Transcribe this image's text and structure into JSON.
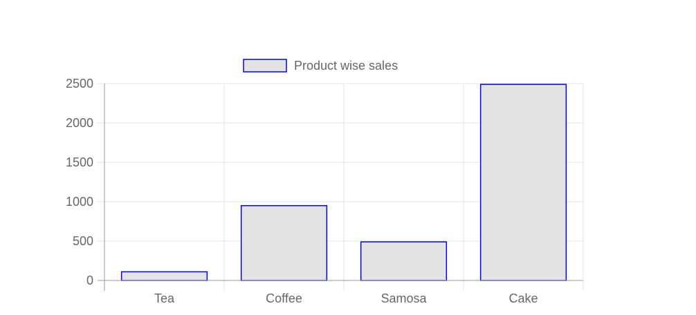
{
  "chart_data": {
    "type": "bar",
    "categories": [
      "Tea",
      "Coffee",
      "Samosa",
      "Cake"
    ],
    "series": [
      {
        "name": "Product wise sales",
        "values": [
          110,
          950,
          490,
          2490
        ]
      }
    ],
    "ylim": [
      0,
      2500
    ],
    "yticks": [
      0,
      500,
      1000,
      1500,
      2000,
      2500
    ],
    "grid": true,
    "legend_position": "top",
    "colors": {
      "bar_fill": "#e4e4e4",
      "bar_border": "#0000ff",
      "grid": "#e6e6e6",
      "axis": "#999999",
      "text": "#666666"
    }
  }
}
